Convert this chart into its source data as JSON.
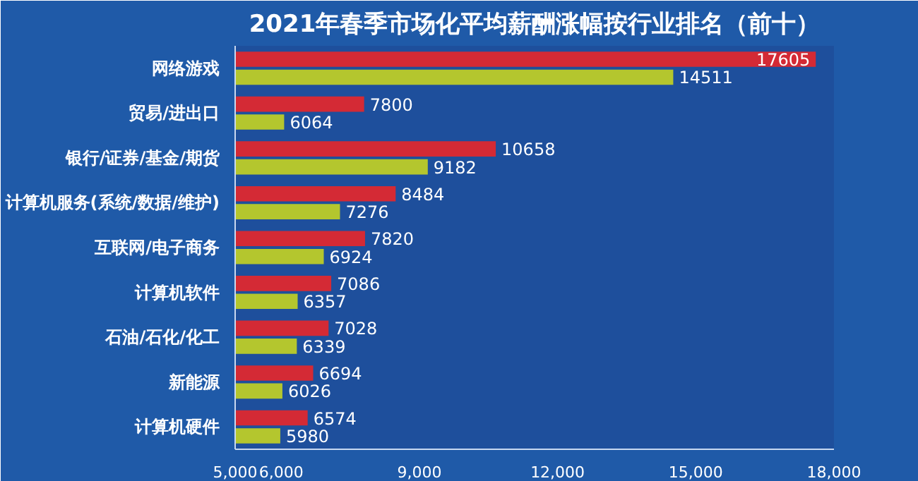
{
  "chart_data": {
    "type": "bar",
    "orientation": "horizontal",
    "title": "2021年春季市场化平均薪酬涨幅按行业排名（前十）",
    "categories": [
      "网络游戏",
      "贸易/进出口",
      "银行/证券/基金/期货",
      "计算机服务(系统/数据/维护)",
      "互联网/电子商务",
      "计算机软件",
      "石油/石化/化工",
      "新能源",
      "计算机硬件"
    ],
    "series": [
      {
        "color": "#d42a35",
        "values": [
          17605,
          7800,
          10658,
          8484,
          7820,
          7086,
          7028,
          6694,
          6574
        ]
      },
      {
        "color": "#b4c62e",
        "values": [
          14511,
          6064,
          9182,
          7276,
          6924,
          6357,
          6339,
          6026,
          5980
        ]
      }
    ],
    "xlim": [
      5000,
      18000
    ],
    "xticks": [
      {
        "value": 5000,
        "label": "5,000"
      },
      {
        "value": 6000,
        "label": "6,000"
      },
      {
        "value": 9000,
        "label": "9,000"
      },
      {
        "value": 12000,
        "label": "12,000"
      },
      {
        "value": 15000,
        "label": "15,000"
      },
      {
        "value": 18000,
        "label": "18,000"
      }
    ],
    "data_labels": true,
    "grid": false
  }
}
